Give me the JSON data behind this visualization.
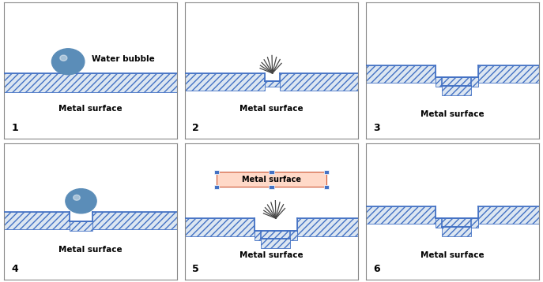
{
  "bg_color": "#ffffff",
  "hatch_color": "#4472c4",
  "hatch_face": "#dce6f1",
  "hatch_edge": "#4472c4",
  "bubble_color": "#5b8db8",
  "metal_label": "Metal surface",
  "bubble_label": "Water bubble",
  "panel_border": "#888888",
  "splash_color": "#555555",
  "handle_color": "#4472c4",
  "box_face": "#ffd9c8",
  "box_edge": "#cc6644"
}
